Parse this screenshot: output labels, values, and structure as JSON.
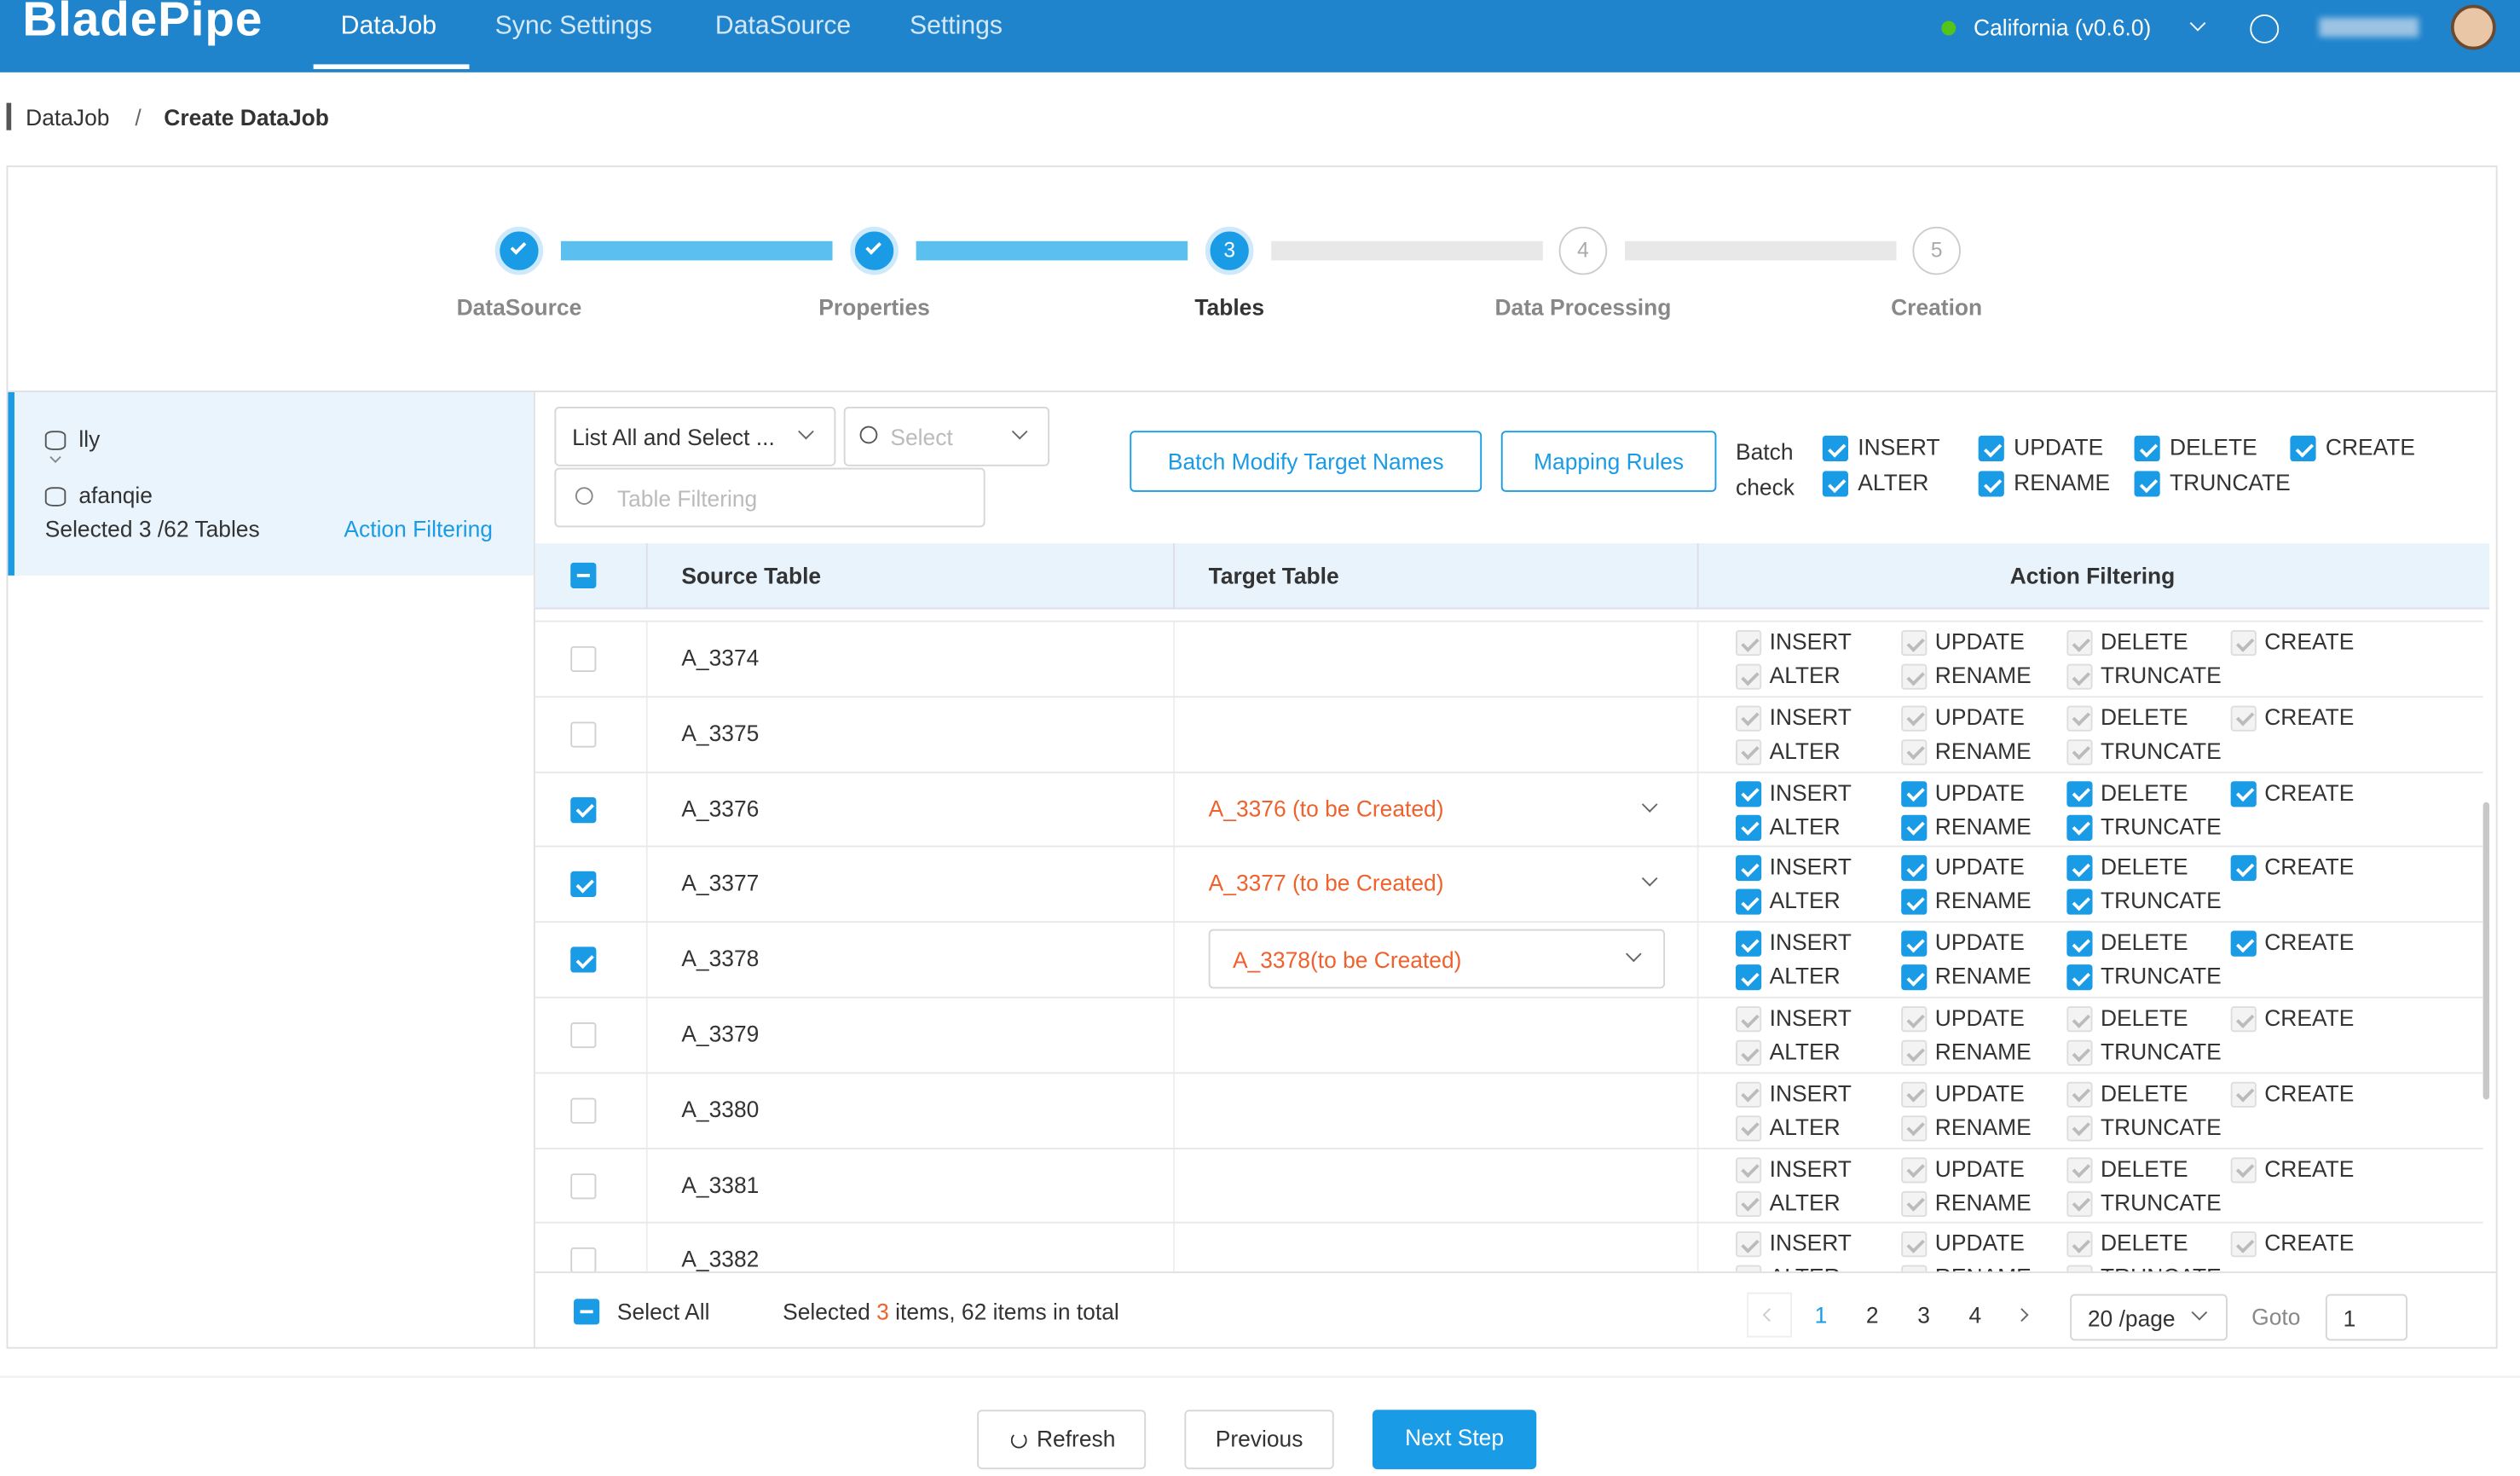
{
  "nav": {
    "logo": "BladePipe",
    "tabs": [
      "DataJob",
      "Sync Settings",
      "DataSource",
      "Settings"
    ],
    "active_tab": 0,
    "region": "California (v0.6.0)"
  },
  "breadcrumb": {
    "items": [
      "DataJob",
      "Create DataJob"
    ],
    "separator": "/"
  },
  "steps": [
    {
      "label": "DataSource",
      "status": "done"
    },
    {
      "label": "Properties",
      "status": "done"
    },
    {
      "number": "3",
      "label": "Tables",
      "status": "active"
    },
    {
      "number": "4",
      "label": "Data Processing",
      "status": "todo"
    },
    {
      "number": "5",
      "label": "Creation",
      "status": "todo"
    }
  ],
  "sidebar": {
    "source": "lly",
    "target": "afanqie",
    "summary": "Selected 3 /62 Tables",
    "link": "Action Filtering"
  },
  "toolbar": {
    "mode_select": "List All and Select ...",
    "select_placeholder": "Select",
    "filter_placeholder": "Table Filtering",
    "buttons": [
      "Batch Modify Target Names",
      "Mapping Rules"
    ],
    "batch_label": "Batch check"
  },
  "actions": [
    "INSERT",
    "UPDATE",
    "DELETE",
    "CREATE",
    "ALTER",
    "RENAME",
    "TRUNCATE"
  ],
  "table": {
    "columns": [
      "Source Table",
      "Target Table",
      "Action Filtering"
    ],
    "rows": [
      {
        "source": "A_3374",
        "selected": false
      },
      {
        "source": "A_3375",
        "selected": false
      },
      {
        "source": "A_3376",
        "selected": true,
        "target": "A_3376 (to be Created)"
      },
      {
        "source": "A_3377",
        "selected": true,
        "target": "A_3377 (to be Created)"
      },
      {
        "source": "A_3378",
        "selected": true,
        "target": "A_3378(to be Created)",
        "target_editing": true
      },
      {
        "source": "A_3379",
        "selected": false
      },
      {
        "source": "A_3380",
        "selected": false
      },
      {
        "source": "A_3381",
        "selected": false
      },
      {
        "source": "A_3382",
        "selected": false
      }
    ]
  },
  "footer": {
    "select_all": "Select All",
    "selected_prefix": "Selected",
    "selected_count": "3",
    "selected_suffix": "items, 62 items in total",
    "pages": [
      "1",
      "2",
      "3",
      "4"
    ],
    "current_page": 0,
    "page_size": "20 /page",
    "goto_label": "Goto",
    "goto_value": "1"
  },
  "buttons": [
    "Refresh",
    "Previous",
    "Next Step"
  ]
}
